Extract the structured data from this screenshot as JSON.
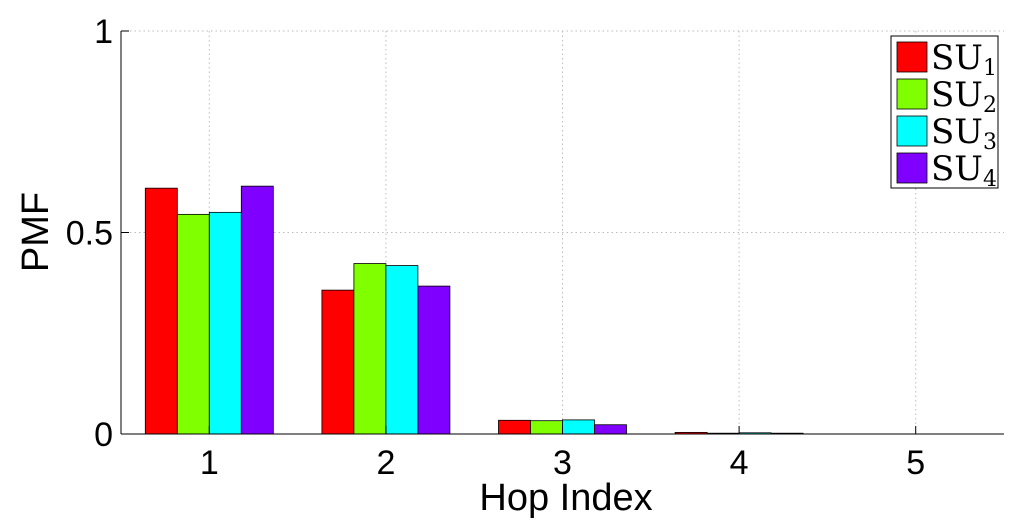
{
  "chart_data": {
    "type": "bar",
    "title": "",
    "xlabel": "Hop Index",
    "ylabel": "PMF",
    "categories": [
      "1",
      "2",
      "3",
      "4",
      "5"
    ],
    "ylim": [
      0,
      1
    ],
    "yticks": [
      {
        "value": 0,
        "label": "0"
      },
      {
        "value": 0.5,
        "label": "0.5"
      },
      {
        "value": 1,
        "label": "1"
      }
    ],
    "grid": true,
    "grid_style": "dotted",
    "legend_position": "top-right",
    "series": [
      {
        "name": "SU",
        "subscript": "1",
        "color": "#ff0000",
        "values": [
          0.61,
          0.357,
          0.034,
          0.004,
          0.0
        ]
      },
      {
        "name": "SU",
        "subscript": "2",
        "color": "#80ff00",
        "values": [
          0.545,
          0.423,
          0.033,
          0.002,
          0.0
        ]
      },
      {
        "name": "SU",
        "subscript": "3",
        "color": "#00ffff",
        "values": [
          0.55,
          0.418,
          0.035,
          0.003,
          0.0
        ]
      },
      {
        "name": "SU",
        "subscript": "4",
        "color": "#8000ff",
        "values": [
          0.615,
          0.367,
          0.023,
          0.002,
          0.0
        ]
      }
    ]
  }
}
